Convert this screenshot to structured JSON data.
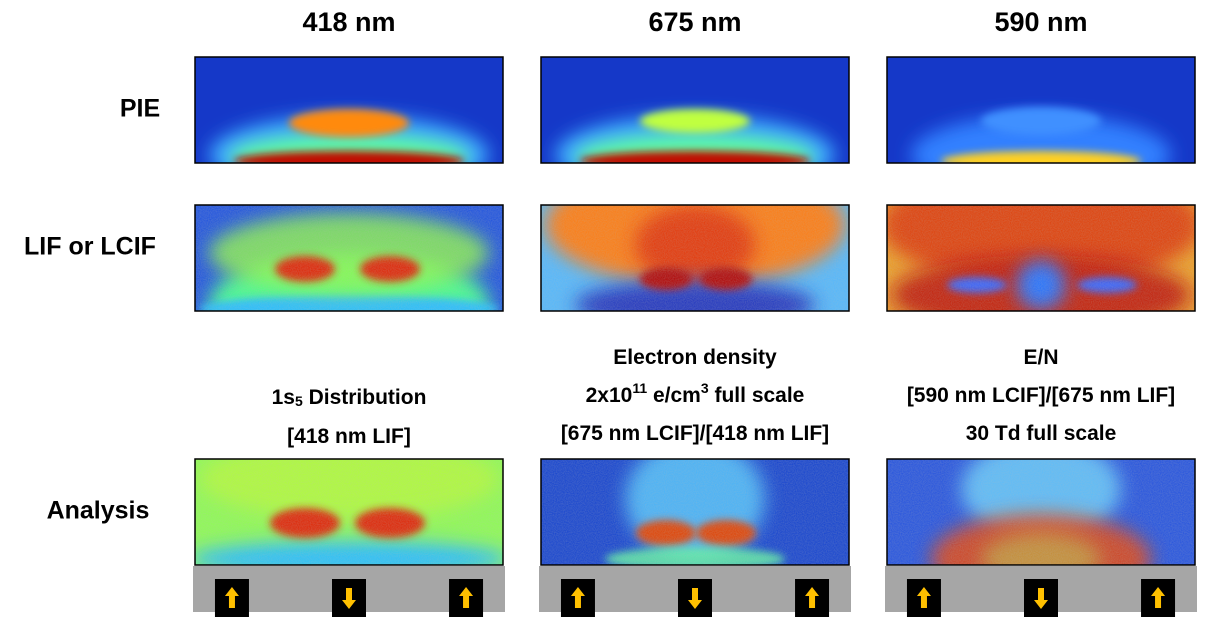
{
  "columns": [
    "418 nm",
    "675 nm",
    "590 nm"
  ],
  "rows": [
    "PIE",
    "LIF or LCIF",
    "Analysis"
  ],
  "captions": [
    {
      "lines": [
        [
          {
            "text": "1s"
          },
          {
            "sub": "5"
          },
          {
            "text": " Distribution"
          }
        ],
        [
          {
            "text": "[418 nm LIF]"
          }
        ]
      ]
    },
    {
      "lines": [
        [
          {
            "text": "Electron density"
          }
        ],
        [
          {
            "text": "2x10"
          },
          {
            "sup": "11"
          },
          {
            "text": " e/cm"
          },
          {
            "sup": "3"
          },
          {
            "text": " full scale"
          }
        ],
        [
          {
            "text": "[675 nm LCIF]/[418 nm LIF]"
          }
        ]
      ]
    },
    {
      "lines": [
        [
          {
            "text": "E/N"
          }
        ],
        [
          {
            "text": "[590 nm LCIF]/[675 nm LIF]"
          }
        ],
        [
          {
            "text": "30 Td full scale"
          }
        ]
      ]
    }
  ]
}
